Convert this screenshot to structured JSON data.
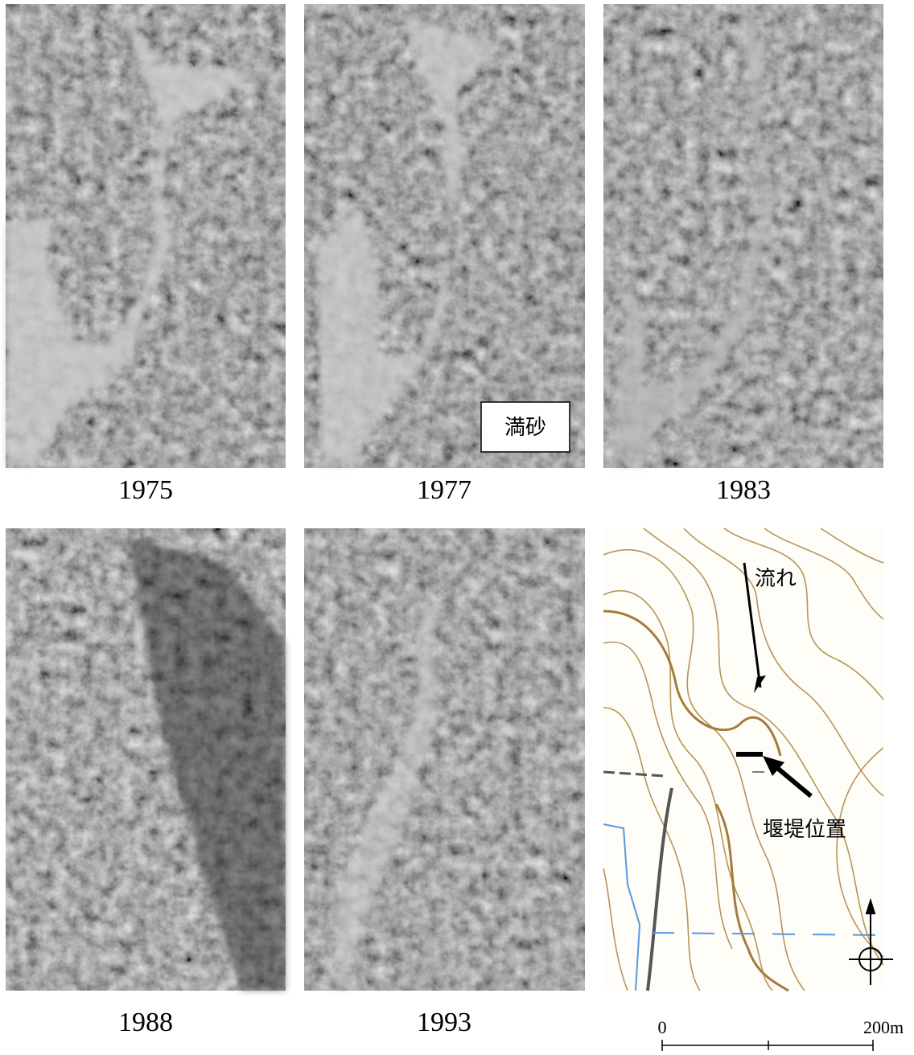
{
  "panels": [
    {
      "label": "1975"
    },
    {
      "label": "1977",
      "annotation": "満砂"
    },
    {
      "label": "1983"
    },
    {
      "label": "1988"
    },
    {
      "label": "1993"
    }
  ],
  "map": {
    "flow_label": "流れ",
    "dam_label": "堰堤位置"
  },
  "scale": {
    "start": "0",
    "end": "200m"
  }
}
